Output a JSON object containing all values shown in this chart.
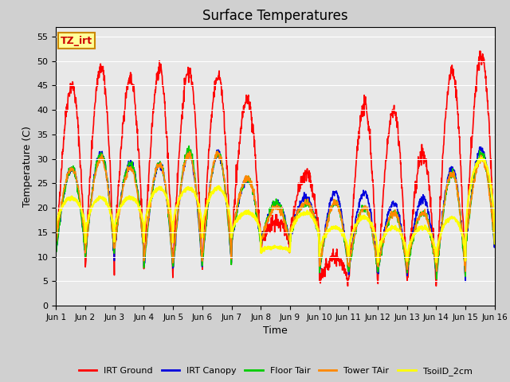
{
  "title": "Surface Temperatures",
  "xlabel": "Time",
  "ylabel": "Temperature (C)",
  "ylim": [
    0,
    57
  ],
  "yticks": [
    0,
    5,
    10,
    15,
    20,
    25,
    30,
    35,
    40,
    45,
    50,
    55
  ],
  "x_labels": [
    "Jun 1",
    "Jun 2",
    "Jun 3",
    "Jun 4",
    "Jun 5",
    "Jun 6",
    "Jun 7",
    "Jun 8",
    "Jun 9",
    "Jun 10",
    "Jun 11",
    "Jun 12",
    "Jun 13",
    "Jun 14",
    "Jun 15",
    "Jun 16"
  ],
  "legend_entries": [
    "IRT Ground",
    "IRT Canopy",
    "Floor Tair",
    "Tower TAir",
    "TsoilD_2cm"
  ],
  "line_colors": [
    "#ff0000",
    "#0000dd",
    "#00cc00",
    "#ff8800",
    "#ffff00"
  ],
  "line_widths": [
    1.2,
    1.2,
    1.2,
    1.2,
    1.8
  ],
  "plot_bg_color": "#e8e8e8",
  "fig_bg_color": "#d0d0d0",
  "annotation_text": "TZ_irt",
  "annotation_color": "#cc0000",
  "annotation_bg": "#ffff99",
  "annotation_border": "#cc8800",
  "n_days": 15,
  "pts_per_day": 96,
  "day_peaks_ground": [
    45,
    49,
    46,
    48,
    48,
    47,
    42,
    17,
    27,
    10,
    41,
    40,
    31,
    48,
    51
  ],
  "day_lows_ground": [
    11,
    8,
    12,
    7,
    9,
    8,
    13,
    13,
    15,
    5,
    5,
    5,
    5,
    5,
    12
  ],
  "day_peaks_canopy": [
    28,
    31,
    29,
    29,
    31,
    31,
    26,
    21,
    22,
    23,
    23,
    21,
    22,
    28,
    32
  ],
  "day_lows_canopy": [
    11,
    10,
    12,
    8,
    8,
    9,
    13,
    13,
    14,
    7,
    7,
    7,
    7,
    6,
    12
  ],
  "day_peaks_floor": [
    28,
    31,
    29,
    29,
    32,
    31,
    26,
    21,
    21,
    21,
    20,
    19,
    19,
    27,
    31
  ],
  "day_lows_floor": [
    11,
    10,
    12,
    8,
    8,
    9,
    13,
    13,
    14,
    7,
    7,
    7,
    7,
    6,
    12
  ],
  "day_peaks_tower": [
    28,
    30,
    28,
    29,
    31,
    31,
    26,
    20,
    21,
    21,
    20,
    19,
    19,
    27,
    30
  ],
  "day_lows_tower": [
    13,
    11,
    12,
    9,
    9,
    10,
    14,
    13,
    15,
    8,
    8,
    8,
    8,
    7,
    13
  ],
  "day_peaks_soil": [
    22,
    22,
    22,
    24,
    24,
    24,
    19,
    12,
    19,
    16,
    18,
    16,
    16,
    18,
    30
  ],
  "day_lows_soil": [
    15,
    13,
    15,
    13,
    15,
    14,
    14,
    11,
    13,
    10,
    10,
    9,
    9,
    9,
    13
  ]
}
